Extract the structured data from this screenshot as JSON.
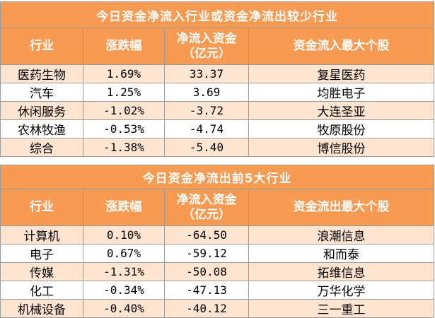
{
  "table1": {
    "title": "今日资金净流入行业或资金净流出较少行业",
    "headers": [
      "行业",
      "涨跌幅",
      "净流入资金\n（亿元）",
      "资金流入最大个股"
    ],
    "rows": [
      {
        "industry": "医药生物",
        "change": "1.69%",
        "net_flow": "33.37",
        "top_stock": "复星医药"
      },
      {
        "industry": "汽车",
        "change": "1.25%",
        "net_flow": "3.69",
        "top_stock": "均胜电子"
      },
      {
        "industry": "休闲服务",
        "change": "-1.02%",
        "net_flow": "-3.72",
        "top_stock": "大连圣亚"
      },
      {
        "industry": "农林牧渔",
        "change": "-0.53%",
        "net_flow": "-4.74",
        "top_stock": "牧原股份"
      },
      {
        "industry": "综合",
        "change": "-1.38%",
        "net_flow": "-5.40",
        "top_stock": "博信股份"
      }
    ]
  },
  "table2": {
    "title": "今日资金净流出前5大行业",
    "headers": [
      "行业",
      "涨跌幅",
      "净流入资金\n（亿元）",
      "资金流出最大个股"
    ],
    "rows": [
      {
        "industry": "计算机",
        "change": "0.10%",
        "net_flow": "-64.50",
        "top_stock": "浪潮信息"
      },
      {
        "industry": "电子",
        "change": "0.67%",
        "net_flow": "-59.12",
        "top_stock": "和而泰"
      },
      {
        "industry": "传媒",
        "change": "-1.31%",
        "net_flow": "-50.08",
        "top_stock": "拓维信息"
      },
      {
        "industry": "化工",
        "change": "-0.34%",
        "net_flow": "-47.13",
        "top_stock": "万华化学"
      },
      {
        "industry": "机械设备",
        "change": "-0.40%",
        "net_flow": "-40.12",
        "top_stock": "三一重工"
      }
    ]
  },
  "colors": {
    "header_bg": "#f79a52",
    "stripe_bg": "#fde5d2",
    "header_text": "#ffffff"
  }
}
